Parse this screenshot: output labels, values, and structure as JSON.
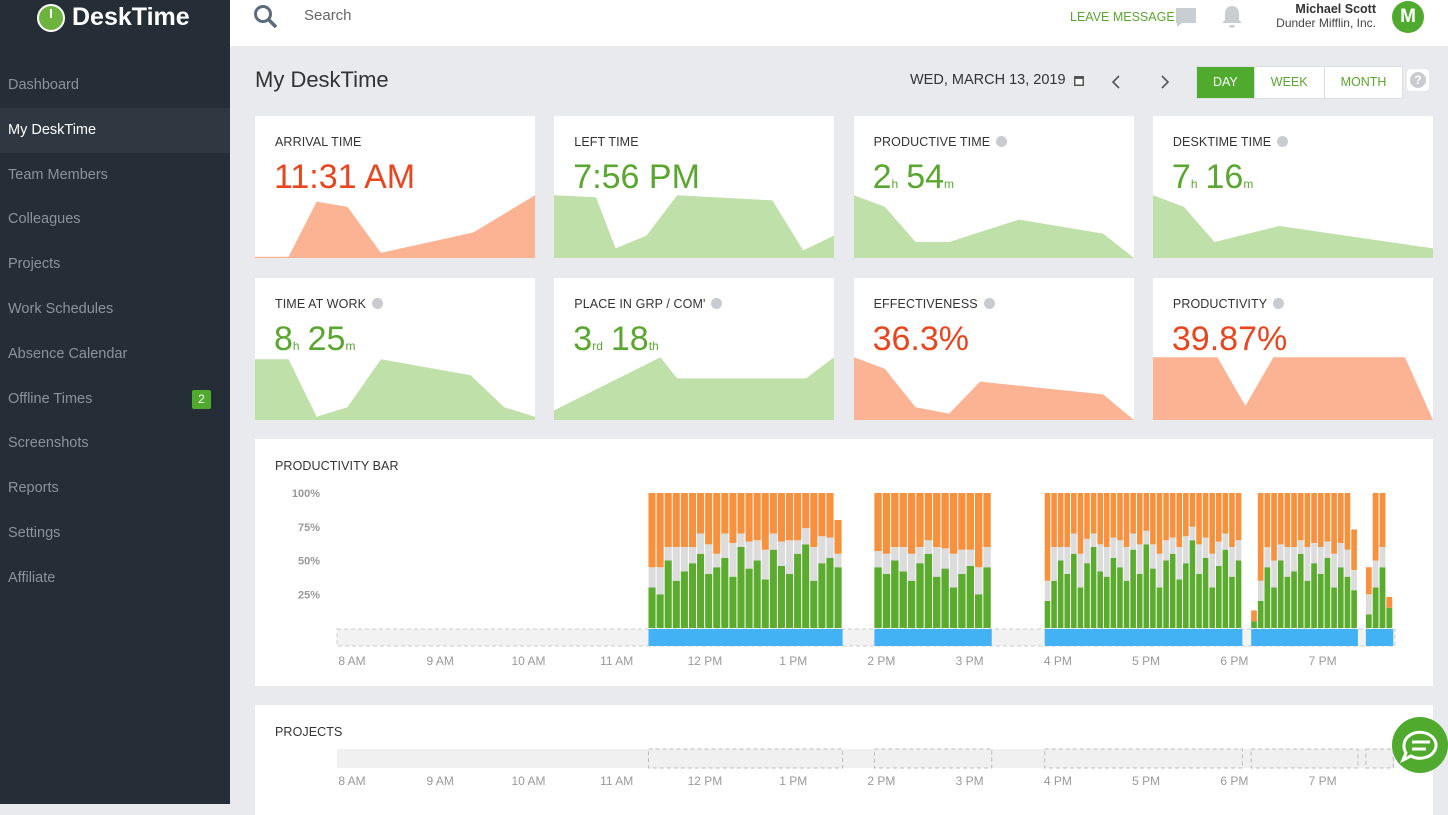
{
  "header": {
    "logo": "DeskTime",
    "search": "Search",
    "leave_message": "LEAVE MESSAGE",
    "user_name": "Michael Scott",
    "company": "Dunder Mifflin, Inc.",
    "avatar": "M"
  },
  "sidebar": {
    "items": [
      "Dashboard",
      "My DeskTime",
      "Team Members",
      "Colleagues",
      "Projects",
      "Work Schedules",
      "Absence Calendar",
      "Offline Times",
      "Screenshots",
      "Reports",
      "Settings",
      "Affiliate"
    ],
    "active": 1,
    "badge_item": 7,
    "badge": "2"
  },
  "page": {
    "title": "My DeskTime",
    "date": "WED, MARCH 13, 2019",
    "views": [
      "DAY",
      "WEEK",
      "MONTH"
    ],
    "active_view": 0,
    "help": "?"
  },
  "cards": [
    {
      "label": "ARRIVAL TIME",
      "help": false,
      "color": "#e8461e",
      "fill": "#fbb394",
      "value_parts": [
        {
          "text": "11:31 AM"
        }
      ],
      "spark_x": [
        0,
        12,
        22,
        33,
        45,
        78,
        100
      ],
      "spark_y": [
        2,
        2,
        88,
        80,
        8,
        40,
        98
      ]
    },
    {
      "label": "LEFT TIME",
      "help": false,
      "color": "#5aa631",
      "fill": "#bfe0a8",
      "value_parts": [
        {
          "text": "7:56 PM"
        }
      ],
      "spark_x": [
        0,
        15,
        22,
        33,
        44,
        78,
        89,
        100
      ],
      "spark_y": [
        98,
        95,
        15,
        35,
        98,
        90,
        12,
        35
      ]
    },
    {
      "label": "PRODUCTIVE TIME",
      "help": true,
      "color": "#5aa631",
      "fill": "#bfe0a8",
      "value_parts": [
        {
          "text": "2"
        },
        {
          "text": "h",
          "small": true
        },
        {
          "text": "54"
        },
        {
          "text": "m",
          "small": true
        }
      ],
      "spark_x": [
        0,
        11,
        22,
        34,
        59,
        89,
        100
      ],
      "spark_y": [
        98,
        80,
        25,
        25,
        60,
        38,
        0
      ]
    },
    {
      "label": "DESKTIME TIME",
      "help": true,
      "color": "#5aa631",
      "fill": "#bfe0a8",
      "value_parts": [
        {
          "text": "7"
        },
        {
          "text": "h",
          "small": true
        },
        {
          "text": "16"
        },
        {
          "text": "m",
          "small": true
        }
      ],
      "spark_x": [
        0,
        11,
        22,
        45,
        100
      ],
      "spark_y": [
        98,
        80,
        25,
        50,
        15
      ]
    },
    {
      "label": "TIME AT WORK",
      "help": true,
      "color": "#5aa631",
      "fill": "#bfe0a8",
      "value_parts": [
        {
          "text": "8"
        },
        {
          "text": "h",
          "small": true
        },
        {
          "text": "25"
        },
        {
          "text": "m",
          "small": true
        }
      ],
      "spark_x": [
        0,
        12,
        22,
        33,
        45,
        77,
        89,
        100
      ],
      "spark_y": [
        95,
        95,
        5,
        20,
        95,
        70,
        20,
        5
      ]
    },
    {
      "label": "PLACE IN GRP / COM'",
      "help": true,
      "color": "#5aa631",
      "fill": "#bfe0a8",
      "value_parts": [
        {
          "text": "3"
        },
        {
          "text": "rd",
          "small": true
        },
        {
          "text": "18"
        },
        {
          "text": "th",
          "small": true
        }
      ],
      "spark_x": [
        0,
        38,
        44,
        90,
        100
      ],
      "spark_y": [
        15,
        98,
        65,
        65,
        98
      ]
    },
    {
      "label": "EFFECTIVENESS",
      "help": true,
      "color": "#e8461e",
      "fill": "#fbb394",
      "value_parts": [
        {
          "text": "36.3%"
        }
      ],
      "spark_x": [
        0,
        11,
        22,
        34,
        45,
        89,
        100
      ],
      "spark_y": [
        98,
        80,
        20,
        10,
        60,
        40,
        0
      ]
    },
    {
      "label": "PRODUCTIVITY",
      "help": true,
      "color": "#e8461e",
      "fill": "#fbb394",
      "value_parts": [
        {
          "text": "39.87%"
        }
      ],
      "spark_x": [
        0,
        23,
        33,
        43,
        90,
        100
      ],
      "spark_y": [
        98,
        98,
        22,
        98,
        98,
        0
      ]
    }
  ],
  "chart_data": {
    "type": "stacked_bar_timeline",
    "title": "PRODUCTIVITY BAR",
    "ylim": [
      0,
      100
    ],
    "yticks": [
      {
        "value": 100,
        "label": "100%"
      },
      {
        "value": 75,
        "label": "75%"
      },
      {
        "value": 50,
        "label": "50%"
      },
      {
        "value": 25,
        "label": "25%"
      }
    ],
    "xlim": [
      7.83,
      19.82
    ],
    "xticks": [
      {
        "value": 8,
        "label": "8 AM"
      },
      {
        "value": 9,
        "label": "9 AM"
      },
      {
        "value": 10,
        "label": "10 AM"
      },
      {
        "value": 11,
        "label": "11 AM"
      },
      {
        "value": 12,
        "label": "12 PM"
      },
      {
        "value": 13,
        "label": "1 PM"
      },
      {
        "value": 14,
        "label": "2 PM"
      },
      {
        "value": 15,
        "label": "3 PM"
      },
      {
        "value": 16,
        "label": "4 PM"
      },
      {
        "value": 17,
        "label": "5 PM"
      },
      {
        "value": 18,
        "label": "6 PM"
      },
      {
        "value": 19,
        "label": "7 PM"
      }
    ],
    "colors": {
      "productive": "#5aab2e",
      "neutral": "#dcdcdc",
      "unproductive": "#f7913d",
      "online": "#42b2f5"
    },
    "blocks": [
      {
        "start": 11.36,
        "end": 13.56,
        "productive": [
          30,
          25,
          50,
          35,
          42,
          48,
          55,
          40,
          45,
          52,
          38,
          60,
          44,
          50,
          36,
          58,
          46,
          40,
          55,
          62,
          35,
          48,
          52,
          45
        ],
        "neutral": [
          15,
          20,
          10,
          25,
          18,
          12,
          15,
          22,
          10,
          18,
          25,
          10,
          20,
          15,
          22,
          12,
          18,
          25,
          10,
          12,
          25,
          20,
          15,
          10
        ],
        "unproductive": [
          55,
          55,
          40,
          40,
          40,
          40,
          30,
          38,
          45,
          30,
          37,
          30,
          36,
          35,
          42,
          30,
          36,
          35,
          35,
          26,
          40,
          32,
          33,
          25
        ]
      },
      {
        "start": 13.92,
        "end": 15.25,
        "productive": [
          45,
          40,
          50,
          42,
          35,
          48,
          55,
          38,
          44,
          30,
          40,
          46,
          25,
          45
        ],
        "neutral": [
          12,
          15,
          10,
          18,
          20,
          12,
          10,
          22,
          15,
          25,
          18,
          12,
          20,
          15
        ],
        "unproductive": [
          43,
          45,
          40,
          40,
          45,
          40,
          35,
          40,
          41,
          45,
          42,
          42,
          55,
          40
        ]
      },
      {
        "start": 15.85,
        "end": 18.09,
        "productive": [
          20,
          35,
          50,
          40,
          55,
          30,
          48,
          60,
          42,
          38,
          52,
          45,
          35,
          58,
          40,
          62,
          44,
          30,
          50,
          55,
          36,
          48,
          65,
          40,
          52,
          30,
          46,
          58,
          38,
          50
        ],
        "neutral": [
          15,
          25,
          10,
          20,
          15,
          25,
          18,
          10,
          20,
          22,
          15,
          20,
          25,
          12,
          22,
          10,
          18,
          25,
          15,
          12,
          24,
          20,
          10,
          22,
          15,
          25,
          18,
          12,
          22,
          15
        ],
        "unproductive": [
          65,
          40,
          40,
          40,
          30,
          45,
          34,
          30,
          38,
          40,
          33,
          35,
          40,
          30,
          38,
          28,
          38,
          45,
          35,
          33,
          40,
          32,
          25,
          38,
          33,
          45,
          36,
          30,
          40,
          35
        ]
      },
      {
        "start": 18.19,
        "end": 19.4,
        "productive": [
          5,
          20,
          45,
          30,
          50,
          38,
          42,
          55,
          35,
          48,
          40,
          52,
          30,
          45,
          38,
          28
        ],
        "neutral": [
          0,
          15,
          15,
          20,
          12,
          22,
          18,
          10,
          25,
          15,
          20,
          12,
          25,
          18,
          20,
          15
        ],
        "unproductive": [
          8,
          65,
          40,
          50,
          38,
          40,
          40,
          35,
          40,
          37,
          40,
          36,
          45,
          37,
          42,
          30
        ]
      },
      {
        "start": 19.49,
        "end": 19.8,
        "productive": [
          10,
          30,
          45,
          15
        ],
        "neutral": [
          15,
          20,
          15,
          0
        ],
        "unproductive": [
          20,
          50,
          40,
          8
        ]
      }
    ]
  },
  "projects": {
    "title": "PROJECTS"
  }
}
